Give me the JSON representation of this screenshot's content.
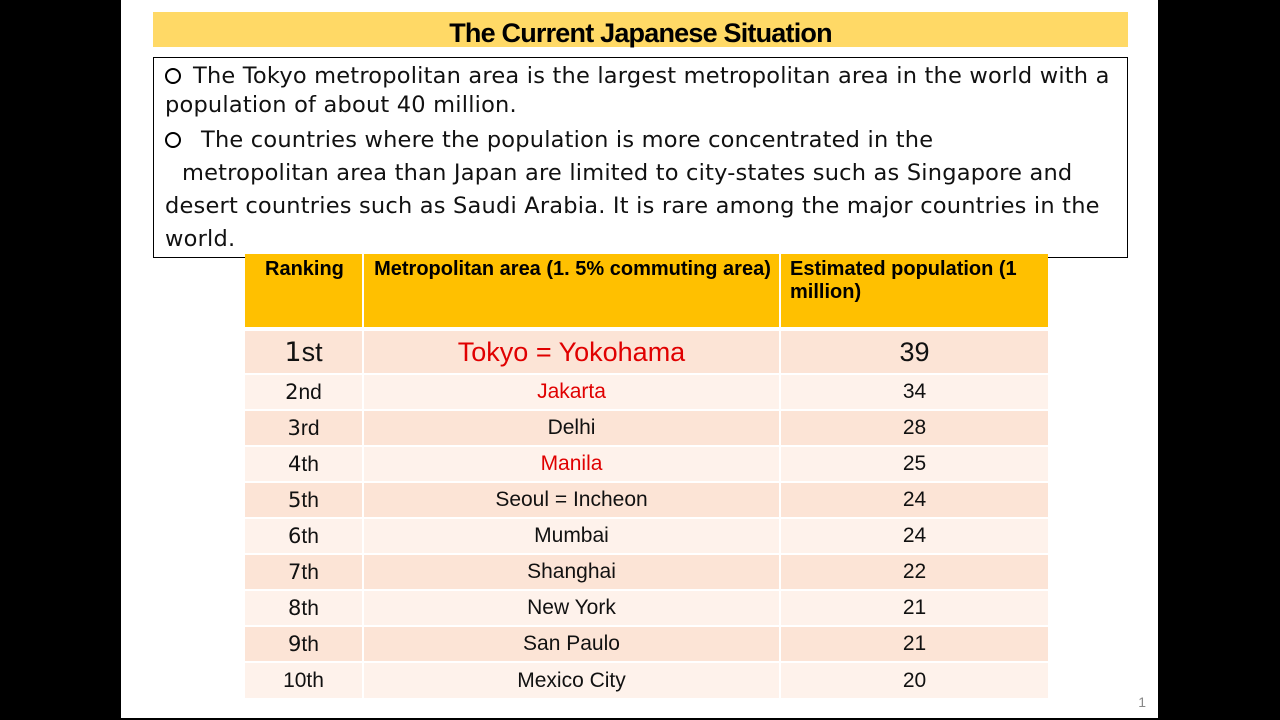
{
  "title": "The Current Japanese Situation",
  "intro": {
    "paragraph1": "The Tokyo metropolitan area is the largest metropolitan area in the world with a population of about 40 million.",
    "paragraph2_line1": "The countries where the population is more concentrated in the",
    "paragraph2_rest": "metropolitan area than Japan are limited to city-states such as Singapore and desert countries such as Saudi Arabia. It is rare among the major countries in the world."
  },
  "table": {
    "headers": [
      "Ranking",
      "Metropolitan area (1. 5% commuting area)",
      "Estimated population (1 million)"
    ],
    "rows": [
      {
        "rank_num": "1",
        "rank_suffix": "st",
        "area": "Tokyo = Yokohama",
        "population": "39"
      },
      {
        "rank_num": "2",
        "rank_suffix": "nd",
        "area": "Jakarta",
        "population": "34"
      },
      {
        "rank_num": "3",
        "rank_suffix": "rd",
        "area": "Delhi",
        "population": "28"
      },
      {
        "rank_num": "4",
        "rank_suffix": "th",
        "area": "Manila",
        "population": "25"
      },
      {
        "rank_num": "5",
        "rank_suffix": "th",
        "area": "Seoul = Incheon",
        "population": "24"
      },
      {
        "rank_num": "6",
        "rank_suffix": "th",
        "area": "Mumbai",
        "population": "24"
      },
      {
        "rank_num": "7",
        "rank_suffix": "th",
        "area": "Shanghai",
        "population": "22"
      },
      {
        "rank_num": "8",
        "rank_suffix": "th",
        "area": "New York",
        "population": "21"
      },
      {
        "rank_num": "9",
        "rank_suffix": "th",
        "area": "San Paulo",
        "population": "21"
      },
      {
        "rank_num": "10th",
        "rank_suffix": "",
        "area": "Mexico City",
        "population": "20"
      }
    ]
  },
  "page_number": "1",
  "colors": {
    "title_bg": "#FFD966",
    "header_bg": "#FFC000",
    "highlight_text": "#E00000"
  }
}
